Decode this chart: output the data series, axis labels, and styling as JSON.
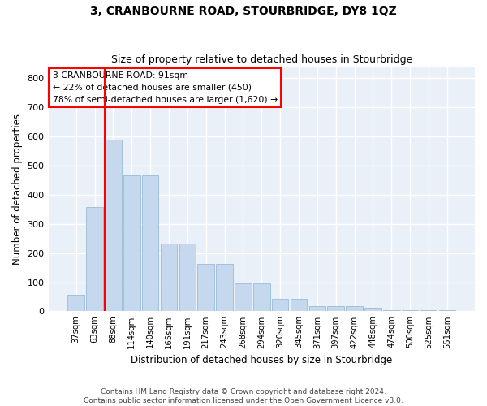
{
  "title": "3, CRANBOURNE ROAD, STOURBRIDGE, DY8 1QZ",
  "subtitle": "Size of property relative to detached houses in Stourbridge",
  "xlabel": "Distribution of detached houses by size in Stourbridge",
  "ylabel": "Number of detached properties",
  "bar_labels": [
    "37sqm",
    "63sqm",
    "88sqm",
    "114sqm",
    "140sqm",
    "165sqm",
    "191sqm",
    "217sqm",
    "243sqm",
    "268sqm",
    "294sqm",
    "320sqm",
    "345sqm",
    "371sqm",
    "397sqm",
    "422sqm",
    "448sqm",
    "474sqm",
    "500sqm",
    "525sqm",
    "551sqm"
  ],
  "heights": [
    57,
    357,
    590,
    467,
    467,
    232,
    232,
    163,
    163,
    95,
    95,
    43,
    43,
    18,
    18,
    18,
    12,
    5,
    5,
    5,
    5
  ],
  "ylim": [
    0,
    840
  ],
  "yticks": [
    0,
    100,
    200,
    300,
    400,
    500,
    600,
    700,
    800
  ],
  "bar_color": "#c5d8ee",
  "bar_edgecolor": "#9bbbd8",
  "property_line_label": "3 CRANBOURNE ROAD: 91sqm",
  "annotation_line1": "← 22% of detached houses are smaller (450)",
  "annotation_line2": "78% of semi-detached houses are larger (1,620) →",
  "annotation_box_facecolor": "white",
  "annotation_box_edgecolor": "red",
  "vline_color": "red",
  "vline_x_index": 2.0,
  "background_color": "#eaf0f8",
  "grid_color": "white",
  "footer_line1": "Contains HM Land Registry data © Crown copyright and database right 2024.",
  "footer_line2": "Contains public sector information licensed under the Open Government Licence v3.0."
}
